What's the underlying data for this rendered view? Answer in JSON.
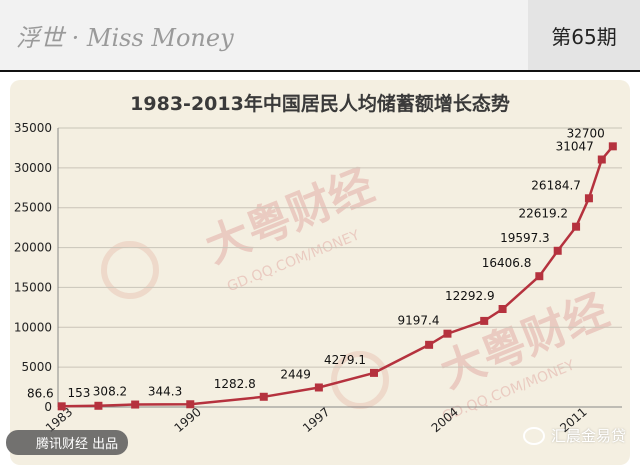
{
  "header": {
    "brand": "浮世 · Miss Money",
    "issue": "第65期"
  },
  "watermark": {
    "brand": "大粤财经",
    "url": "GD.QQ.COM/MONEY"
  },
  "credit": "腾讯财经 出品",
  "wechat_account": "汇晨金易贷",
  "chart_data": {
    "type": "line",
    "title": "1983-2013年中国居民人均储蓄额增长态势",
    "xlabel": "",
    "ylabel": "",
    "ylim": [
      0,
      35000
    ],
    "yticks": [
      0,
      5000,
      10000,
      15000,
      20000,
      25000,
      30000,
      35000
    ],
    "xtick_labels": [
      "1983",
      "1990",
      "1997",
      "2004",
      "2011"
    ],
    "grid": true,
    "line_color": "#b5323e",
    "series": [
      {
        "points": [
          {
            "x": 1983,
            "y": 86.6,
            "label": "86.6"
          },
          {
            "x": 1985,
            "y": 153,
            "label": "153"
          },
          {
            "x": 1987,
            "y": 308.2,
            "label": "308.2"
          },
          {
            "x": 1990,
            "y": 344.3,
            "label": "344.3"
          },
          {
            "x": 1994,
            "y": 1282.8,
            "label": "1282.8"
          },
          {
            "x": 1997,
            "y": 2449,
            "label": "2449"
          },
          {
            "x": 2000,
            "y": 4279.1,
            "label": "4279.1"
          },
          {
            "x": 2003,
            "y": 7800,
            "label": ""
          },
          {
            "x": 2004,
            "y": 9197.4,
            "label": "9197.4"
          },
          {
            "x": 2006,
            "y": 10800,
            "label": ""
          },
          {
            "x": 2007,
            "y": 12292.9,
            "label": "12292.9"
          },
          {
            "x": 2009,
            "y": 16406.8,
            "label": "16406.8"
          },
          {
            "x": 2010,
            "y": 19597.3,
            "label": "19597.3"
          },
          {
            "x": 2011,
            "y": 22619.2,
            "label": "22619.2"
          },
          {
            "x": 2011.7,
            "y": 26184.7,
            "label": "26184.7"
          },
          {
            "x": 2012.4,
            "y": 31047,
            "label": "31047"
          },
          {
            "x": 2013,
            "y": 32700,
            "label": "32700"
          }
        ]
      }
    ]
  }
}
